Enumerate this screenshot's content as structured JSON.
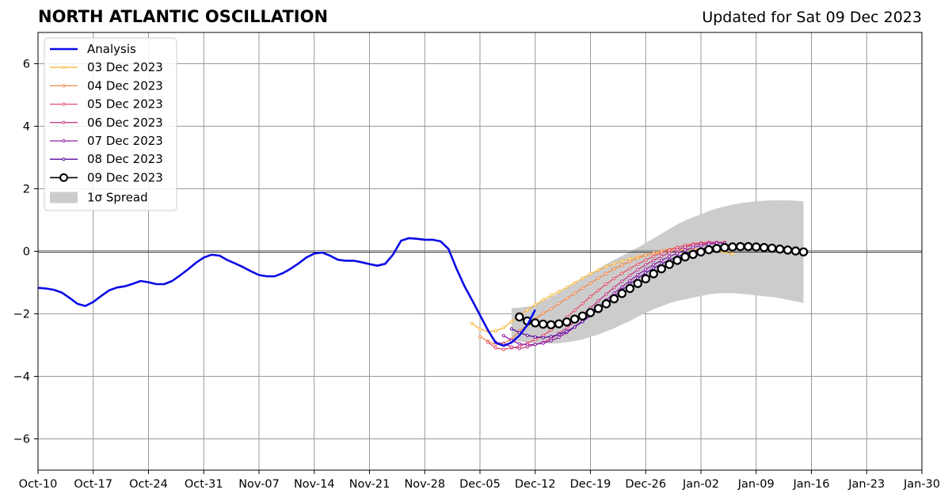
{
  "header": {
    "title": "NORTH ATLANTIC OSCILLATION",
    "updated": "Updated for Sat 09 Dec 2023"
  },
  "chart_data": {
    "type": "line",
    "title": "NORTH ATLANTIC OSCILLATION",
    "subtitle": "Updated for Sat 09 Dec 2023",
    "xlabel": "",
    "ylabel": "",
    "x_unit": "date",
    "xlim": [
      "2023-10-10",
      "2024-01-30"
    ],
    "ylim": [
      -7,
      7
    ],
    "x_ticks": [
      "2023-10-10",
      "2023-10-17",
      "2023-10-24",
      "2023-10-31",
      "2023-11-07",
      "2023-11-14",
      "2023-11-21",
      "2023-11-28",
      "2023-12-05",
      "2023-12-12",
      "2023-12-19",
      "2023-12-26",
      "2024-01-02",
      "2024-01-09",
      "2024-01-16",
      "2024-01-23",
      "2024-01-30"
    ],
    "x_tick_labels": [
      "Oct-10",
      "Oct-17",
      "Oct-24",
      "Oct-31",
      "Nov-07",
      "Nov-14",
      "Nov-21",
      "Nov-28",
      "Dec-05",
      "Dec-12",
      "Dec-19",
      "Dec-26",
      "Jan-02",
      "Jan-09",
      "Jan-16",
      "Jan-23",
      "Jan-30"
    ],
    "y_ticks": [
      -6,
      -4,
      -2,
      0,
      2,
      4,
      6
    ],
    "y_tick_labels": [
      "−6",
      "−4",
      "−2",
      "0",
      "2",
      "4",
      "6"
    ],
    "grid": true,
    "zero_line": true,
    "legend_position": "top-left",
    "colors": {
      "analysis": "#0a0ae6",
      "spread": "#cccccc",
      "grid": "#999999",
      "f03": "#f6b93b",
      "f04": "#f08a4b",
      "f05": "#e0506b",
      "f06": "#c13b8a",
      "f07": "#8e1fa6",
      "f08": "#5a0a9e",
      "f09": "#000000"
    },
    "analysis": {
      "name": "Analysis",
      "start": "2023-10-10",
      "step_days": 1,
      "values": [
        -1.17,
        -1.19,
        -1.23,
        -1.32,
        -1.49,
        -1.68,
        -1.75,
        -1.62,
        -1.43,
        -1.25,
        -1.16,
        -1.12,
        -1.04,
        -0.95,
        -0.99,
        -1.05,
        -1.05,
        -0.95,
        -0.77,
        -0.58,
        -0.37,
        -0.2,
        -0.11,
        -0.14,
        -0.28,
        -0.39,
        -0.51,
        -0.64,
        -0.76,
        -0.8,
        -0.8,
        -0.7,
        -0.56,
        -0.39,
        -0.2,
        -0.07,
        -0.04,
        -0.14,
        -0.27,
        -0.3,
        -0.3,
        -0.35,
        -0.41,
        -0.46,
        -0.4,
        -0.1,
        0.34,
        0.42,
        0.4,
        0.37,
        0.37,
        0.32,
        0.08,
        -0.54,
        -1.1,
        -1.56,
        -2.04,
        -2.52,
        -2.93,
        -3.02,
        -2.92,
        -2.69,
        -2.36,
        -1.87
      ]
    },
    "spread": {
      "name": "1σ Spread",
      "start": "2023-12-09",
      "step_days": 1,
      "upper": [
        -1.82,
        -1.8,
        -1.78,
        -1.71,
        -1.59,
        -1.46,
        -1.33,
        -1.18,
        -1.04,
        -0.88,
        -0.72,
        -0.56,
        -0.41,
        -0.27,
        -0.15,
        -0.02,
        0.12,
        0.27,
        0.41,
        0.56,
        0.72,
        0.86,
        0.98,
        1.09,
        1.18,
        1.29,
        1.37,
        1.43,
        1.49,
        1.54,
        1.57,
        1.6,
        1.62,
        1.63,
        1.63,
        1.63,
        1.62,
        1.6
      ],
      "lower": [
        -2.88,
        -2.88,
        -2.92,
        -2.94,
        -2.94,
        -2.95,
        -2.94,
        -2.91,
        -2.87,
        -2.82,
        -2.74,
        -2.66,
        -2.56,
        -2.46,
        -2.34,
        -2.23,
        -2.09,
        -1.97,
        -1.85,
        -1.76,
        -1.66,
        -1.59,
        -1.54,
        -1.48,
        -1.43,
        -1.38,
        -1.35,
        -1.34,
        -1.34,
        -1.36,
        -1.38,
        -1.41,
        -1.44,
        -1.46,
        -1.5,
        -1.55,
        -1.6,
        -1.65
      ]
    },
    "series": [
      {
        "name": "03 Dec 2023",
        "key": "f03",
        "start": "2023-12-04",
        "step_days": 1,
        "values": [
          -2.31,
          -2.49,
          -2.56,
          -2.55,
          -2.44,
          -2.25,
          -2.05,
          -1.88,
          -1.71,
          -1.56,
          -1.41,
          -1.29,
          -1.15,
          -1.01,
          -0.86,
          -0.72,
          -0.6,
          -0.49,
          -0.4,
          -0.31,
          -0.24,
          -0.17,
          -0.12,
          -0.07,
          -0.03,
          0.01,
          0.04,
          0.05,
          0.07,
          0.06,
          0.04,
          0.01,
          -0.03,
          -0.08
        ]
      },
      {
        "name": "04 Dec 2023",
        "key": "f04",
        "start": "2023-12-05",
        "step_days": 1,
        "values": [
          -2.73,
          -2.88,
          -2.98,
          -2.94,
          -2.81,
          -2.55,
          -2.36,
          -2.17,
          -1.98,
          -1.85,
          -1.67,
          -1.51,
          -1.35,
          -1.18,
          -1.02,
          -0.86,
          -0.71,
          -0.56,
          -0.44,
          -0.33,
          -0.22,
          -0.13,
          -0.06,
          0.02,
          0.07,
          0.13,
          0.18,
          0.21,
          0.23,
          0.24,
          0.25
        ]
      },
      {
        "name": "05 Dec 2023",
        "key": "f05",
        "start": "2023-12-06",
        "step_days": 1,
        "values": [
          -2.91,
          -3.09,
          -3.14,
          -3.09,
          -3.04,
          -2.94,
          -2.82,
          -2.69,
          -2.52,
          -2.32,
          -2.11,
          -1.89,
          -1.67,
          -1.45,
          -1.25,
          -1.05,
          -0.87,
          -0.71,
          -0.55,
          -0.41,
          -0.28,
          -0.16,
          -0.05,
          0.04,
          0.12,
          0.19,
          0.24,
          0.27,
          0.29,
          0.29,
          0.29
        ]
      },
      {
        "name": "06 Dec 2023",
        "key": "f06",
        "start": "2023-12-07",
        "step_days": 1,
        "values": [
          -2.91,
          -2.96,
          -3.06,
          -3.11,
          -3.06,
          -2.98,
          -2.92,
          -2.79,
          -2.63,
          -2.45,
          -2.25,
          -2.03,
          -1.81,
          -1.59,
          -1.37,
          -1.16,
          -0.96,
          -0.77,
          -0.59,
          -0.43,
          -0.29,
          -0.16,
          -0.05,
          0.05,
          0.13,
          0.2,
          0.24,
          0.27,
          0.28,
          0.27
        ]
      },
      {
        "name": "07 Dec 2023",
        "key": "f07",
        "start": "2023-12-08",
        "step_days": 1,
        "values": [
          -2.7,
          -2.85,
          -2.96,
          -2.99,
          -2.98,
          -2.94,
          -2.86,
          -2.75,
          -2.6,
          -2.42,
          -2.22,
          -2.01,
          -1.78,
          -1.56,
          -1.34,
          -1.14,
          -0.94,
          -0.75,
          -0.58,
          -0.43,
          -0.29,
          -0.17,
          -0.06,
          0.04,
          0.12,
          0.18,
          0.23,
          0.26,
          0.27
        ]
      },
      {
        "name": "08 Dec 2023",
        "key": "f08",
        "start": "2023-12-09",
        "step_days": 1,
        "values": [
          -2.48,
          -2.6,
          -2.69,
          -2.74,
          -2.76,
          -2.73,
          -2.66,
          -2.56,
          -2.42,
          -2.25,
          -2.06,
          -1.86,
          -1.65,
          -1.44,
          -1.24,
          -1.04,
          -0.86,
          -0.69,
          -0.54,
          -0.4,
          -0.28,
          -0.17,
          -0.08,
          0.0,
          0.07,
          0.12,
          0.16,
          0.19,
          0.2,
          0.2
        ]
      },
      {
        "name": "09 Dec 2023",
        "key": "f09",
        "start": "2023-12-10",
        "step_days": 1,
        "values": [
          -2.1,
          -2.23,
          -2.29,
          -2.33,
          -2.35,
          -2.32,
          -2.26,
          -2.17,
          -2.07,
          -1.96,
          -1.83,
          -1.68,
          -1.52,
          -1.35,
          -1.19,
          -1.03,
          -0.88,
          -0.72,
          -0.56,
          -0.42,
          -0.29,
          -0.18,
          -0.1,
          -0.02,
          0.05,
          0.09,
          0.12,
          0.14,
          0.15,
          0.15,
          0.14,
          0.12,
          0.1,
          0.07,
          0.04,
          0.01,
          -0.02
        ]
      }
    ]
  }
}
